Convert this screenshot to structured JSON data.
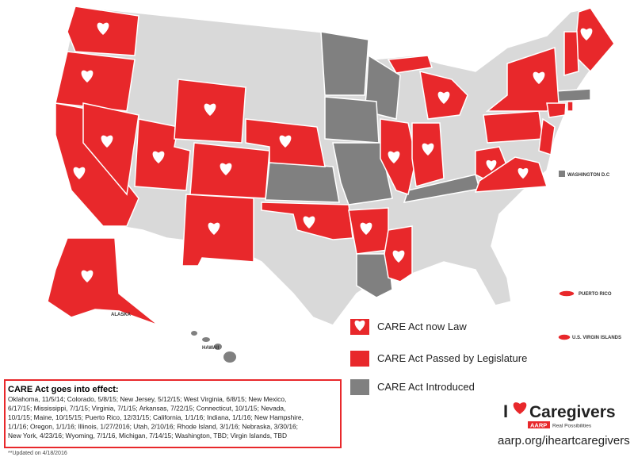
{
  "map_labels": {
    "alaska": "ALASKA",
    "hawaii": "HAWAII",
    "puerto_rico": "PUERTO RICO",
    "virgin_islands": "U.S. VIRGIN ISLANDS",
    "dc": "WASHINGTON D.C"
  },
  "legend": [
    "CARE Act now Law",
    "CARE Act Passed by Legislature",
    "CARE Act Introduced"
  ],
  "effective_dates": {
    "title": "CARE Act goes into effect:",
    "lines": [
      "Oklahoma, 11/5/14; Colorado, 5/8/15; New Jersey, 5/12/15; West Virginia, 6/8/15; New Mexico,",
      "6/17/15; Mississippi, 7/1/15; Virginia, 7/1/15; Arkansas, 7/22/15; Connecticut, 10/1/15; Nevada,",
      "10/1/15; Maine, 10/15/15; Puerto Rico, 12/31/15; California, 1/1/16; Indiana, 1/1/16; New Hampshire,",
      "1/1/16; Oregon, 1/1/16; Illinois, 1/27/2016; Utah, 2/10/16; Rhode Island, 3/1/16; Nebraska, 3/30/16;",
      "New York, 4/23/16; Wyoming, 7/1/16, Michigan, 7/14/15; Washington, TBD; Virgin Islands, TBD"
    ],
    "note": "**Updated on 4/18/2016"
  },
  "branding": {
    "i": "I",
    "caregivers": "Caregivers",
    "aarp": "AARP",
    "tagline": "Real Possibilities",
    "url": "aarp.org/iheartcaregivers"
  }
}
